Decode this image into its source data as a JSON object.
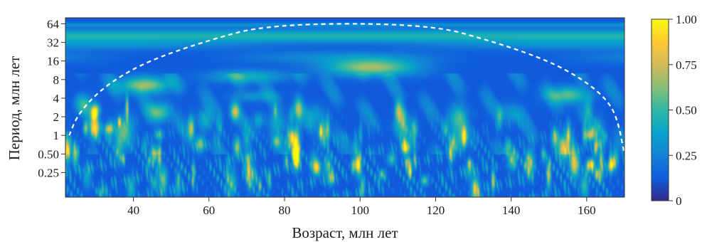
{
  "chart_data": {
    "type": "heatmap",
    "title": "",
    "xlabel": "Возраст, млн лет",
    "ylabel": "Период, млн лет",
    "x_range": [
      22,
      170
    ],
    "x_ticks": [
      40,
      60,
      80,
      100,
      120,
      140,
      160
    ],
    "x_tick_labels": [
      "40",
      "60",
      "80",
      "100",
      "120",
      "140",
      "160"
    ],
    "y_scale": "log2",
    "y_range": [
      0.1,
      80
    ],
    "y_ticks": [
      0.25,
      0.5,
      1,
      2,
      4,
      8,
      16,
      32,
      64
    ],
    "y_tick_labels": [
      "0.25",
      "0.50",
      "1",
      "2",
      "4",
      "8",
      "16",
      "32",
      "64"
    ],
    "colorbar": {
      "range": [
        0,
        1
      ],
      "ticks": [
        0,
        0.25,
        0.5,
        0.75,
        1.0
      ],
      "tick_labels": [
        "0",
        "0.25",
        "0.50",
        "0.75",
        "1.00"
      ],
      "colormap": "parula",
      "colors": [
        "#352a87",
        "#0f5cdd",
        "#1481d6",
        "#06a4ca",
        "#2eb7a4",
        "#87bf77",
        "#d1bb59",
        "#fec832",
        "#f9fb0e"
      ]
    },
    "cone_of_influence": {
      "style": "dashed",
      "color": "#ffffff",
      "points": [
        [
          23,
          1.0
        ],
        [
          25,
          2.0
        ],
        [
          29,
          4.0
        ],
        [
          35,
          8.0
        ],
        [
          44,
          16.0
        ],
        [
          58,
          32.0
        ],
        [
          76,
          64.0
        ],
        [
          118,
          64.0
        ],
        [
          136,
          32.0
        ],
        [
          150,
          16.0
        ],
        [
          159,
          8.0
        ],
        [
          165,
          4.0
        ],
        [
          168,
          2.0
        ],
        [
          170,
          0.5
        ]
      ]
    },
    "high_power_regions": [
      {
        "x": 43,
        "period": 6.5,
        "value": 0.8
      },
      {
        "x": 103,
        "period": 12.0,
        "value": 0.8
      },
      {
        "x": 70,
        "period": 9.0,
        "value": 0.65
      },
      {
        "x": 47,
        "period": 2.4,
        "value": 0.75
      },
      {
        "x": 155,
        "period": 4.5,
        "value": 0.6
      },
      {
        "x": 80,
        "period": 45.0,
        "value": 0.45
      }
    ]
  }
}
